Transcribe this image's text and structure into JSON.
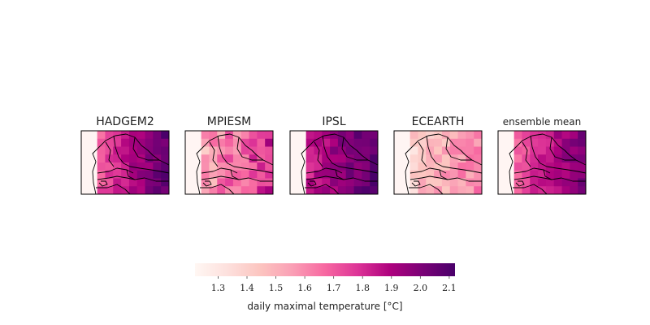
{
  "chart_data": {
    "type": "heatmap",
    "panels": [
      {
        "title": "HADGEM2",
        "east_level": 2.06,
        "west_level": 1.62,
        "variability": 0.06
      },
      {
        "title": "MPIESM",
        "east_level": 1.82,
        "west_level": 1.45,
        "variability": 0.12
      },
      {
        "title": "IPSL",
        "east_level": 2.08,
        "west_level": 1.78,
        "variability": 0.07
      },
      {
        "title": "ECEARTH",
        "east_level": 1.62,
        "west_level": 1.36,
        "variability": 0.1
      },
      {
        "title": "ensemble mean",
        "east_level": 2.0,
        "west_level": 1.62,
        "variability": 0.06
      }
    ],
    "colorbar": {
      "label": "daily maximal temperature [°C]",
      "vmin": 1.22,
      "vmax": 2.12,
      "ticks": [
        1.3,
        1.4,
        1.5,
        1.6,
        1.7,
        1.8,
        1.9,
        2.0,
        2.1
      ],
      "tick_labels": [
        "1.3",
        "1.4",
        "1.5",
        "1.6",
        "1.7",
        "1.8",
        "1.9",
        "2.0",
        "2.1"
      ],
      "colormap": [
        "#fff7f3",
        "#fde0dd",
        "#fcc5c0",
        "#fa9fb5",
        "#f768a1",
        "#dd3497",
        "#ae017e",
        "#7a0177",
        "#49006a"
      ]
    }
  }
}
